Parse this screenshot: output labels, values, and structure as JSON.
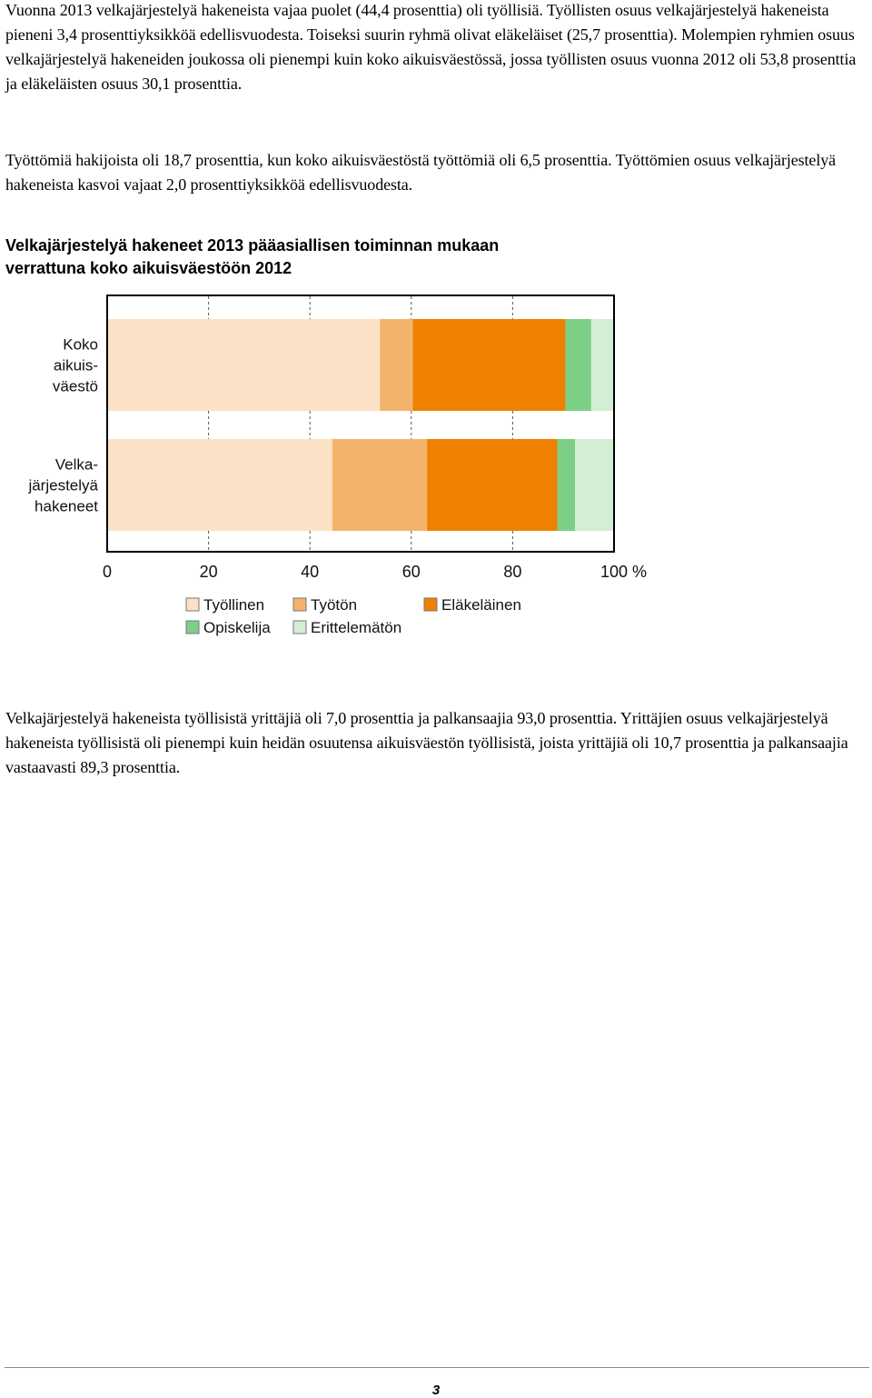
{
  "paragraphs": {
    "p1": "Vuonna 2013 velkajärjestelyä hakeneista vajaa puolet (44,4 prosenttia) oli työllisiä. Työllisten osuus velkajärjestelyä hakeneista pieneni 3,4 prosenttiyksikköä edellisvuodesta. Toiseksi suurin ryhmä olivat eläkeläiset (25,7 prosenttia). Molempien ryhmien osuus velkajärjestelyä hakeneiden joukossa oli pienempi kuin koko aikuisväestössä, jossa työllisten osuus vuonna 2012 oli 53,8 prosenttia ja eläkeläisten osuus 30,1 prosenttia.",
    "p2": "Työttömiä hakijoista oli 18,7 prosenttia, kun koko aikuisväestöstä työttömiä oli 6,5 prosenttia. Työttömien osuus velkajärjestelyä hakeneista kasvoi vajaat 2,0 prosenttiyksikköä edellisvuodesta.",
    "p3": "Velkajärjestelyä hakeneista työllisistä yrittäjiä oli 7,0 prosenttia ja palkansaajia 93,0 prosenttia. Yrittäjien osuus velkajärjestelyä hakeneista työllisistä oli pienempi kuin heidän osuutensa aikuisväestön työllisistä, joista yrittäjiä oli 10,7 prosenttia ja palkansaajia vastaavasti 89,3 prosenttia."
  },
  "chart_title_lines": [
    "Velkajärjestelyä hakeneet 2013 pääasiallisen toiminnan mukaan",
    "verrattuna koko aikuisväestöön 2012"
  ],
  "chart_data": {
    "type": "bar",
    "orientation": "horizontal",
    "stacked": true,
    "categories": [
      [
        "Koko",
        "aikuis-",
        "väestö"
      ],
      [
        "Velka-",
        "järjestelyä",
        "hakeneet"
      ]
    ],
    "series": [
      {
        "name": "Työllinen",
        "color": "#fbe2c6",
        "values": [
          53.8,
          44.4
        ]
      },
      {
        "name": "Työtön",
        "color": "#f4b36b",
        "values": [
          6.5,
          18.7
        ]
      },
      {
        "name": "Eläkeläinen",
        "color": "#ee8200",
        "values": [
          30.1,
          25.7
        ]
      },
      {
        "name": "Opiskelija",
        "color": "#7ecf86",
        "values": [
          5.1,
          3.5
        ]
      },
      {
        "name": "Erittelemätön",
        "color": "#d4edd5",
        "values": [
          4.5,
          7.7
        ]
      }
    ],
    "x_ticks": [
      "0",
      "20",
      "40",
      "60",
      "80",
      "100 %"
    ],
    "xlim": [
      0,
      100
    ],
    "grid": "vertical",
    "legend_position": "bottom"
  },
  "page_number": "3"
}
